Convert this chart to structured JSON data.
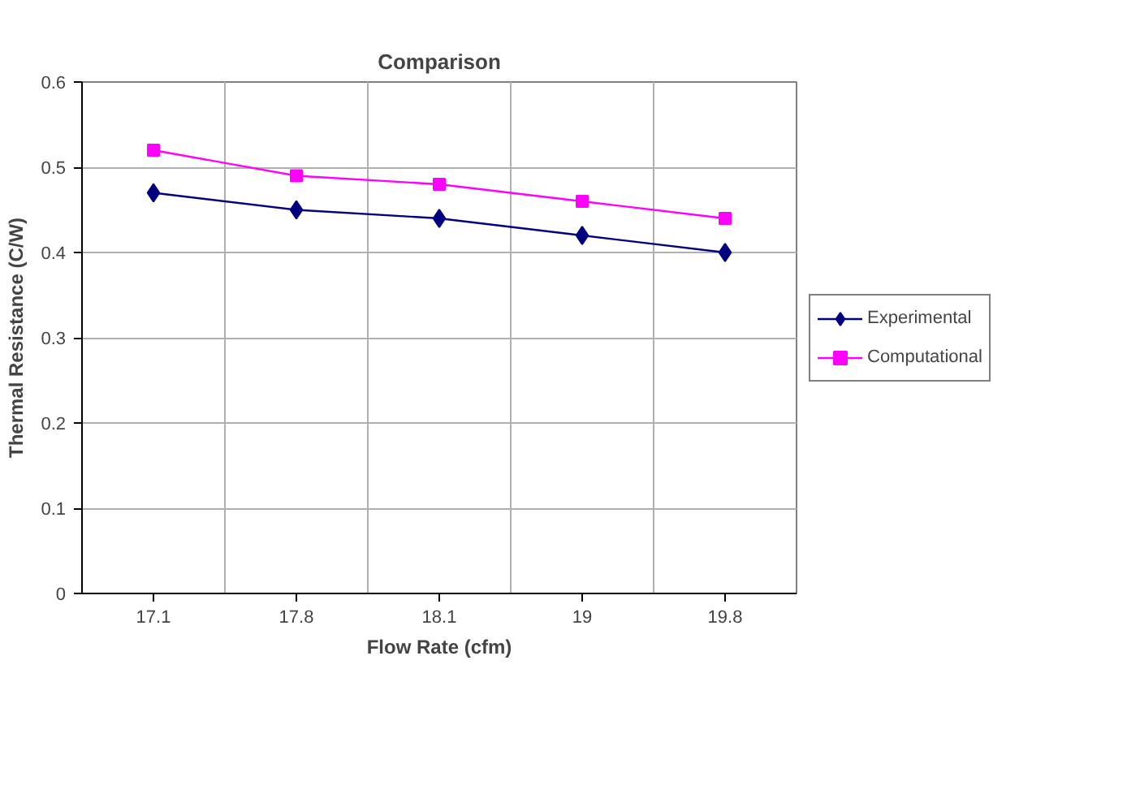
{
  "chart_data": {
    "type": "line",
    "title": "Comparison",
    "xlabel": "Flow Rate (cfm)",
    "ylabel": "Thermal Resistance (C/W)",
    "categories": [
      "17.1",
      "17.8",
      "18.1",
      "19",
      "19.8"
    ],
    "series": [
      {
        "name": "Experimental",
        "color": "#000080",
        "marker": "diamond",
        "values": [
          0.47,
          0.45,
          0.44,
          0.42,
          0.4
        ]
      },
      {
        "name": "Computational",
        "color": "#ff00ff",
        "marker": "square",
        "values": [
          0.52,
          0.49,
          0.48,
          0.46,
          0.44
        ]
      }
    ],
    "ylim": [
      0,
      0.6
    ],
    "yticks": [
      0,
      0.1,
      0.2,
      0.3,
      0.4,
      0.5,
      0.6
    ],
    "grid": true,
    "legend": "right",
    "line_style": "solid"
  }
}
